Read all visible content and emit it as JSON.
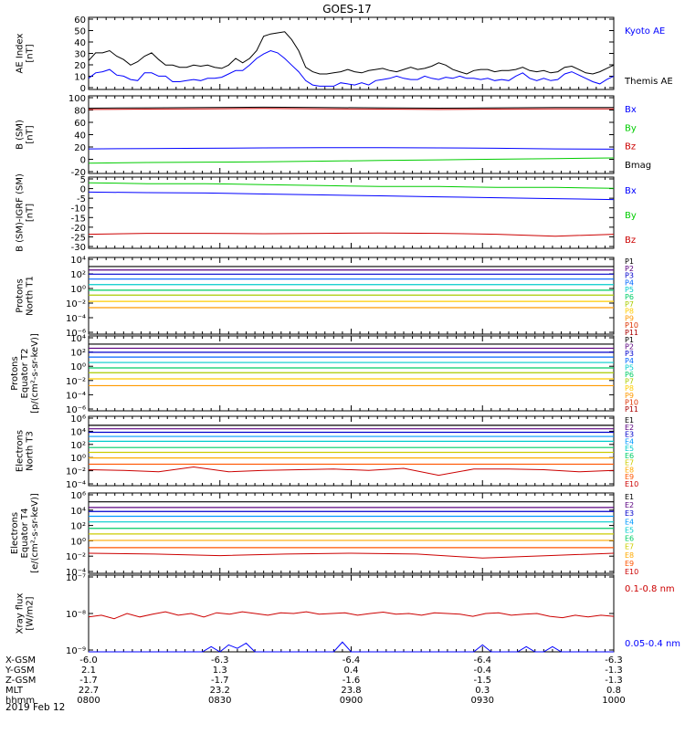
{
  "title": "GOES-17",
  "date_label": "2019 Feb 12",
  "colors": {
    "black": "#000000",
    "blue": "#0000ff",
    "green": "#00cc00",
    "red": "#cc0000",
    "p_colors": [
      "#000000",
      "#5a0080",
      "#0000cc",
      "#0066ff",
      "#00cccc",
      "#00cc66",
      "#aacc00",
      "#ffcc00",
      "#ff9900",
      "#dd3300",
      "#aa0000"
    ],
    "e_colors": [
      "#000000",
      "#5a0080",
      "#0000cc",
      "#0099ff",
      "#00cccc",
      "#00cc66",
      "#cccc00",
      "#ffaa00",
      "#ff5500",
      "#cc0000"
    ]
  },
  "chart_data": [
    {
      "id": "ae",
      "type": "line",
      "ylabel": [
        "AE Index",
        "[nT]"
      ],
      "yticks": [
        "60",
        "50",
        "40",
        "30",
        "20",
        "10",
        "0"
      ],
      "ylim": [
        0,
        65
      ],
      "series": [
        {
          "name": "Kyoto AE",
          "color": "blue",
          "values": [
            10,
            15,
            16,
            18,
            13,
            12,
            9,
            8,
            15,
            15,
            12,
            12,
            7,
            7,
            8,
            9,
            8,
            10,
            10,
            11,
            14,
            17,
            17,
            22,
            28,
            32,
            35,
            33,
            28,
            22,
            16,
            8,
            4,
            3,
            3,
            3,
            6,
            5,
            4,
            6,
            4,
            8,
            9,
            10,
            12,
            10,
            9,
            9,
            12,
            10,
            9,
            11,
            10,
            12,
            10,
            10,
            9,
            10,
            8,
            9,
            8,
            12,
            15,
            10,
            8,
            10,
            8,
            9,
            14,
            16,
            13,
            10,
            7,
            5,
            9,
            12
          ]
        },
        {
          "name": "Themis AE",
          "color": "black",
          "values": [
            26,
            33,
            33,
            35,
            30,
            27,
            22,
            25,
            30,
            33,
            27,
            22,
            22,
            20,
            20,
            22,
            21,
            22,
            20,
            19,
            22,
            28,
            24,
            28,
            35,
            48,
            50,
            51,
            52,
            45,
            35,
            20,
            16,
            14,
            14,
            15,
            16,
            18,
            16,
            15,
            17,
            18,
            19,
            17,
            16,
            18,
            20,
            18,
            19,
            21,
            24,
            22,
            18,
            16,
            14,
            17,
            18,
            18,
            16,
            17,
            17,
            18,
            20,
            17,
            16,
            17,
            15,
            16,
            20,
            21,
            18,
            15,
            14,
            16,
            19,
            22
          ]
        }
      ]
    },
    {
      "id": "bsm",
      "type": "line",
      "ylabel": [
        "B (SM)",
        "[nT]"
      ],
      "yticks": [
        "100",
        "80",
        "60",
        "40",
        "20",
        "0",
        "-20"
      ],
      "ylim": [
        -20,
        100
      ],
      "series": [
        {
          "name": "Bx",
          "color": "blue",
          "values": [
            18,
            18.5,
            19,
            19.5,
            20,
            20,
            19.5,
            19,
            18,
            17.5
          ]
        },
        {
          "name": "By",
          "color": "green",
          "values": [
            -4,
            -3,
            -2.5,
            -2,
            -1,
            0,
            1,
            2,
            3,
            4
          ]
        },
        {
          "name": "Bz",
          "color": "red",
          "values": [
            79,
            79.5,
            80,
            80.5,
            80,
            79.5,
            79,
            79.5,
            80,
            80
          ]
        },
        {
          "name": "Bmag",
          "color": "black",
          "values": [
            81,
            81.5,
            82,
            82.5,
            82,
            81.5,
            81,
            81.5,
            82,
            82
          ]
        }
      ]
    },
    {
      "id": "bigrf",
      "type": "line",
      "ylabel": [
        "B (SM)-IGRF (SM)",
        "[nT]"
      ],
      "yticks": [
        "5",
        "0",
        "-5",
        "-10",
        "-15",
        "-20",
        "-25",
        "-30"
      ],
      "ylim": [
        -31,
        7
      ],
      "series": [
        {
          "name": "Bx",
          "color": "blue",
          "values": [
            -1,
            -1.3,
            -1.5,
            -2,
            -2.5,
            -3,
            -3.5,
            -4,
            -4.5,
            -5
          ]
        },
        {
          "name": "By",
          "color": "green",
          "values": [
            4,
            3.5,
            3.5,
            3,
            2.5,
            2,
            2,
            1.5,
            1.5,
            1
          ]
        },
        {
          "name": "Bz",
          "color": "red",
          "values": [
            -23.5,
            -23,
            -23,
            -23.2,
            -23,
            -22.8,
            -23,
            -23.5,
            -24.5,
            -23.5
          ]
        }
      ]
    },
    {
      "id": "protons_t1",
      "type": "line",
      "ylabel": [
        "Protons",
        "North T1"
      ],
      "yticks": [
        "10⁴",
        "10²",
        "10⁰",
        "10⁻²",
        "10⁻⁴",
        "10⁻⁶"
      ],
      "ylim": [
        -7,
        4
      ],
      "series": [
        {
          "name": "P1",
          "color": "p0",
          "values": [
            2.7
          ]
        },
        {
          "name": "P2",
          "color": "p1",
          "values": [
            2.2
          ]
        },
        {
          "name": "P3",
          "color": "p2",
          "values": [
            1.6
          ]
        },
        {
          "name": "P4",
          "color": "p3",
          "values": [
            0.9
          ]
        },
        {
          "name": "P5",
          "color": "p4",
          "values": [
            0.1
          ]
        },
        {
          "name": "P6",
          "color": "p5",
          "values": [
            -0.7
          ]
        },
        {
          "name": "P7",
          "color": "p6",
          "values": [
            -1.4
          ]
        },
        {
          "name": "P8",
          "color": "p7",
          "values": [
            -2.3
          ]
        },
        {
          "name": "P9",
          "color": "p8",
          "values": [
            -3.2
          ]
        },
        {
          "name": "P10",
          "color": "p9",
          "values": []
        },
        {
          "name": "P11",
          "color": "p10",
          "values": []
        }
      ]
    },
    {
      "id": "protons_t2",
      "type": "line",
      "ylabel": [
        "Protons",
        "Equator T2",
        "[p/(cm²-s-sr-keV)]"
      ],
      "yticks": [
        "10⁴",
        "10²",
        "10⁰",
        "10⁻²",
        "10⁻⁴",
        "10⁻⁶"
      ],
      "ylim": [
        -7,
        4
      ],
      "series": [
        {
          "name": "P1",
          "color": "p0",
          "values": [
            2.8
          ]
        },
        {
          "name": "P2",
          "color": "p1",
          "values": [
            2.2
          ]
        },
        {
          "name": "P3",
          "color": "p2",
          "values": [
            1.6
          ]
        },
        {
          "name": "P4",
          "color": "p3",
          "values": [
            0.9
          ]
        },
        {
          "name": "P5",
          "color": "p4",
          "values": [
            0.1
          ]
        },
        {
          "name": "P6",
          "color": "p5",
          "values": [
            -0.7
          ]
        },
        {
          "name": "P7",
          "color": "p6",
          "values": [
            -1.4
          ]
        },
        {
          "name": "P8",
          "color": "p7",
          "values": [
            -2.3
          ]
        },
        {
          "name": "P9",
          "color": "p8",
          "values": [
            -3.3
          ]
        },
        {
          "name": "P10",
          "color": "p9",
          "values": []
        },
        {
          "name": "P11",
          "color": "p10",
          "values": []
        }
      ]
    },
    {
      "id": "electrons_t3",
      "type": "line",
      "ylabel": [
        "Electrons",
        "North T3"
      ],
      "yticks": [
        "10⁶",
        "10⁴",
        "10²",
        "10⁰",
        "10⁻²",
        "10⁻⁴"
      ],
      "ylim": [
        -4,
        6
      ],
      "series": [
        {
          "name": "E1",
          "color": "e0",
          "values": [
            4.7
          ]
        },
        {
          "name": "E2",
          "color": "e1",
          "values": [
            4.2
          ]
        },
        {
          "name": "E3",
          "color": "e2",
          "values": [
            3.7
          ]
        },
        {
          "name": "E4",
          "color": "e3",
          "values": [
            3.1
          ]
        },
        {
          "name": "E5",
          "color": "e4",
          "values": [
            2.4
          ]
        },
        {
          "name": "E6",
          "color": "e5",
          "values": [
            1.5
          ]
        },
        {
          "name": "E7",
          "color": "e6",
          "values": [
            0.8
          ]
        },
        {
          "name": "E8",
          "color": "e7",
          "values": [
            0.0
          ]
        },
        {
          "name": "E9",
          "color": "e8",
          "values": [
            -0.9
          ]
        },
        {
          "name": "E10",
          "color": "e9",
          "values": [
            -1.7,
            -1.8,
            -2.0,
            -1.3,
            -2.0,
            -1.8,
            -1.7,
            -1.6,
            -1.8,
            -1.5,
            -2.5,
            -1.6,
            -1.6,
            -1.7,
            -2.0,
            -1.8
          ]
        }
      ]
    },
    {
      "id": "electrons_t4",
      "type": "line",
      "ylabel": [
        "Electrons",
        "Equator T4",
        "[e/(cm²-s-sr-keV)]"
      ],
      "yticks": [
        "10⁶",
        "10⁴",
        "10²",
        "10⁰",
        "10⁻²",
        "10⁻⁴"
      ],
      "ylim": [
        -4,
        6
      ],
      "series": [
        {
          "name": "E1",
          "color": "e0",
          "values": [
            4.9
          ]
        },
        {
          "name": "E2",
          "color": "e1",
          "values": [
            4.2
          ]
        },
        {
          "name": "E3",
          "color": "e2",
          "values": [
            3.7
          ]
        },
        {
          "name": "E4",
          "color": "e3",
          "values": [
            3.1
          ]
        },
        {
          "name": "E5",
          "color": "e4",
          "values": [
            2.4
          ]
        },
        {
          "name": "E6",
          "color": "e5",
          "values": [
            1.6
          ]
        },
        {
          "name": "E7",
          "color": "e6",
          "values": [
            0.9
          ]
        },
        {
          "name": "E8",
          "color": "e7",
          "values": [
            0.1
          ]
        },
        {
          "name": "E9",
          "color": "e8",
          "values": [
            -0.8
          ]
        },
        {
          "name": "E10",
          "color": "e9",
          "values": [
            -1.5,
            -1.6,
            -1.8,
            -1.6,
            -1.5,
            -1.6,
            -2.1,
            -1.8,
            -1.5
          ]
        }
      ]
    },
    {
      "id": "xray",
      "type": "line",
      "ylabel": [
        "Xray flux",
        "[W/m2]"
      ],
      "yticks": [
        "10⁻⁷",
        "10⁻⁸",
        "10⁻⁹"
      ],
      "ylim": [
        -9.2,
        -7
      ],
      "series": [
        {
          "name": "0.1-0.8 nm",
          "color": "red",
          "values": [
            -8.2,
            -8.15,
            -8.25,
            -8.1,
            -8.2,
            -8.12,
            -8.05,
            -8.15,
            -8.1,
            -8.2,
            -8.08,
            -8.12,
            -8.05,
            -8.1,
            -8.15,
            -8.08,
            -8.1,
            -8.05,
            -8.12,
            -8.1,
            -8.08,
            -8.15,
            -8.1,
            -8.06,
            -8.12,
            -8.1,
            -8.15,
            -8.08,
            -8.1,
            -8.12,
            -8.18,
            -8.1,
            -8.08,
            -8.15,
            -8.12,
            -8.1,
            -8.18,
            -8.22,
            -8.15,
            -8.2,
            -8.15,
            -8.18
          ]
        },
        {
          "name": "0.05-0.4 nm",
          "color": "blue",
          "values": [
            -9.2,
            -9.2,
            -9.2,
            -9.2,
            -9.2,
            -9.2,
            -9.2,
            -9.2,
            -9.2,
            -9.2,
            -9.2,
            -9.2,
            -9.2,
            -9.2,
            -9.05,
            -9.2,
            -9.0,
            -9.1,
            -8.95,
            -9.2,
            -9.2,
            -9.2,
            -9.2,
            -9.2,
            -9.2,
            -9.2,
            -9.2,
            -9.2,
            -9.2,
            -8.92,
            -9.2,
            -9.2,
            -9.2,
            -9.2,
            -9.2,
            -9.2,
            -9.2,
            -9.2,
            -9.2,
            -9.2,
            -9.2,
            -9.2,
            -9.2,
            -9.2,
            -9.2,
            -9.0,
            -9.2,
            -9.2,
            -9.2,
            -9.2,
            -9.05,
            -9.2,
            -9.2,
            -9.05,
            -9.2,
            -9.2,
            -9.2,
            -9.2,
            -9.2,
            -9.2,
            -9.2
          ]
        }
      ]
    }
  ],
  "x_axis": {
    "row_labels": [
      "X-GSM",
      "Y-GSM",
      "Z-GSM",
      "MLT",
      "hhmm"
    ],
    "columns": [
      {
        "values": [
          "-6.0",
          "2.1",
          "-1.7",
          "22.7",
          "0800"
        ]
      },
      {
        "values": [
          "-6.3",
          "1.3",
          "-1.7",
          "23.2",
          "0830"
        ]
      },
      {
        "values": [
          "-6.4",
          "0.4",
          "-1.6",
          "23.8",
          "0900"
        ]
      },
      {
        "values": [
          "-6.4",
          "-0.4",
          "-1.5",
          "0.3",
          "0930"
        ]
      },
      {
        "values": [
          "-6.3",
          "-1.3",
          "-1.3",
          "0.8",
          "1000"
        ]
      }
    ]
  }
}
